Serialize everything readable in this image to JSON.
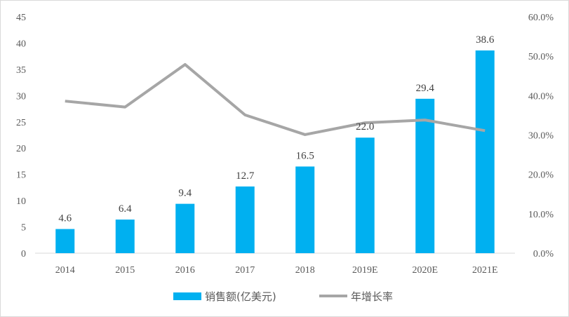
{
  "chart_data": {
    "type": "bar",
    "categories": [
      "2014",
      "2015",
      "2016",
      "2017",
      "2018",
      "2019E",
      "2020E",
      "2021E"
    ],
    "series": [
      {
        "name": "销售额(亿美元)",
        "type": "bar",
        "axis": "left",
        "color": "#00B0F0",
        "values": [
          4.6,
          6.4,
          9.4,
          12.7,
          16.5,
          22.0,
          29.4,
          38.6
        ],
        "labels": [
          "4.6",
          "6.4",
          "9.4",
          "12.7",
          "16.5",
          "22.0",
          "29.4",
          "38.6"
        ]
      },
      {
        "name": "年增长率",
        "type": "line",
        "axis": "right",
        "color": "#A6A6A6",
        "values": [
          38.6,
          37.1,
          47.9,
          35.1,
          30.1,
          33.1,
          33.8,
          31.1
        ]
      }
    ],
    "y_left": {
      "min": 0,
      "max": 45,
      "ticks": [
        0,
        5,
        10,
        15,
        20,
        25,
        30,
        35,
        40,
        45
      ],
      "tick_labels": [
        "0",
        "5",
        "10",
        "15",
        "20",
        "25",
        "30",
        "35",
        "40",
        "45"
      ]
    },
    "y_right": {
      "min": 0,
      "max": 60,
      "ticks": [
        0,
        10,
        20,
        30,
        40,
        50,
        60
      ],
      "tick_labels": [
        "0.0%",
        "10.0%",
        "20.0%",
        "30.0%",
        "40.0%",
        "50.0%",
        "60.0%"
      ]
    },
    "grid": false,
    "legend_position": "bottom"
  }
}
